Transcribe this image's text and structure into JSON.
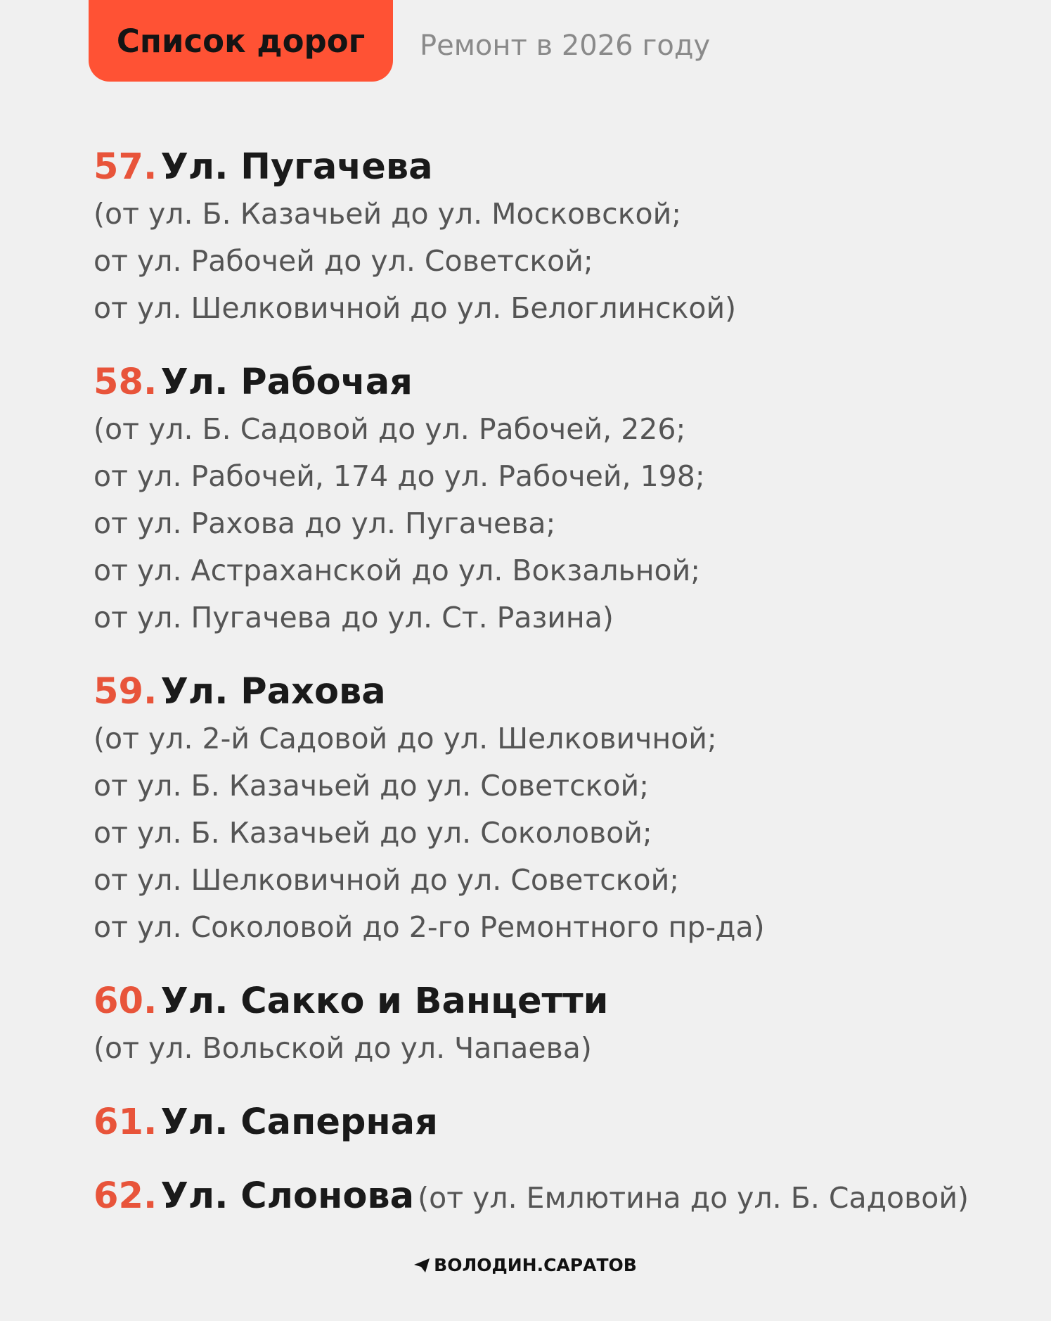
{
  "header": {
    "tag": "Список дорог",
    "subtitle": "Ремонт в 2026 году"
  },
  "items": [
    {
      "number": "57.",
      "name": "Ул. Пугачева",
      "details": [
        "(от ул. Б. Казачьей до ул. Московской;",
        "от ул. Рабочей до ул. Советской;",
        "от ул. Шелковичной до ул. Белоглинской)"
      ]
    },
    {
      "number": "58.",
      "name": "Ул. Рабочая",
      "details": [
        "(от ул. Б. Садовой до ул. Рабочей, 226;",
        "от ул. Рабочей, 174 до ул. Рабочей, 198;",
        "от ул. Рахова до ул. Пугачева;",
        "от ул. Астраханской до ул. Вокзальной;",
        "от ул. Пугачева до ул. Ст. Разина)"
      ]
    },
    {
      "number": "59.",
      "name": "Ул. Рахова",
      "details": [
        "(от ул. 2-й Садовой до ул. Шелковичной;",
        "от ул. Б. Казачьей до ул. Советской;",
        "от ул. Б. Казачьей до ул. Соколовой;",
        "от ул. Шелковичной до ул. Советской;",
        "от ул. Соколовой до 2-го Ремонтного пр-да)"
      ]
    },
    {
      "number": "60.",
      "name": "Ул. Сакко и Ванцетти",
      "details": [
        "(от ул. Вольской до ул. Чапаева)"
      ]
    },
    {
      "number": "61.",
      "name": "Ул. Саперная",
      "details": []
    },
    {
      "number": "62.",
      "name": "Ул. Слонова",
      "note": "(от ул. Емлютина до ул. Б. Садовой)",
      "details": []
    }
  ],
  "footer": {
    "brand": "ВОЛОДИН.САРАТОВ"
  }
}
